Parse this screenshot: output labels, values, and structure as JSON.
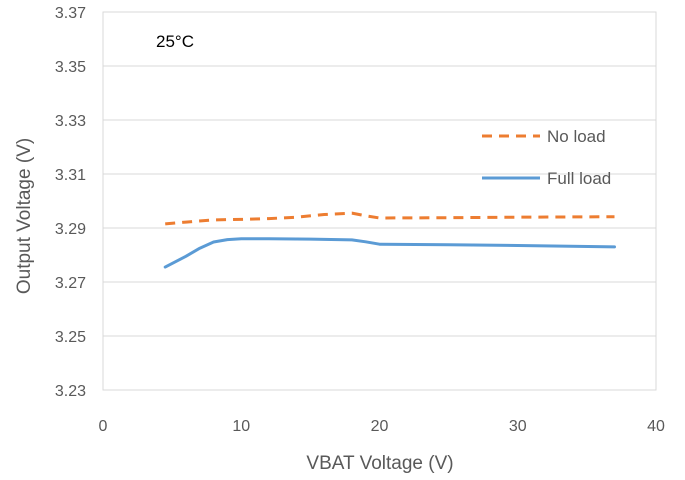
{
  "chart_data": {
    "type": "line",
    "title": "",
    "annotation": "25°C",
    "xlabel": "VBAT Voltage (V)",
    "ylabel": "Output Voltage (V)",
    "xlim": [
      0,
      40
    ],
    "ylim": [
      3.23,
      3.37
    ],
    "xticks": [
      0,
      10,
      20,
      30,
      40
    ],
    "yticks": [
      3.23,
      3.25,
      3.27,
      3.29,
      3.31,
      3.33,
      3.35,
      3.37
    ],
    "grid": "horizontal",
    "legend_position": "right",
    "series": [
      {
        "name": "No load",
        "color": "#ED7D31",
        "dash": true,
        "x": [
          4.5,
          6,
          8,
          10,
          12,
          14,
          16,
          18,
          19,
          20,
          25,
          30,
          37
        ],
        "y": [
          3.2915,
          3.2922,
          3.293,
          3.2932,
          3.2935,
          3.294,
          3.295,
          3.2955,
          3.2945,
          3.2937,
          3.2938,
          3.294,
          3.2942
        ]
      },
      {
        "name": "Full load",
        "color": "#5B9BD5",
        "dash": false,
        "x": [
          4.5,
          6,
          7,
          8,
          9,
          10,
          12,
          15,
          18,
          19,
          20,
          25,
          30,
          37
        ],
        "y": [
          3.2755,
          3.2795,
          3.2825,
          3.2848,
          3.2857,
          3.286,
          3.286,
          3.2859,
          3.2856,
          3.2849,
          3.284,
          3.2838,
          3.2835,
          3.283
        ]
      }
    ]
  }
}
